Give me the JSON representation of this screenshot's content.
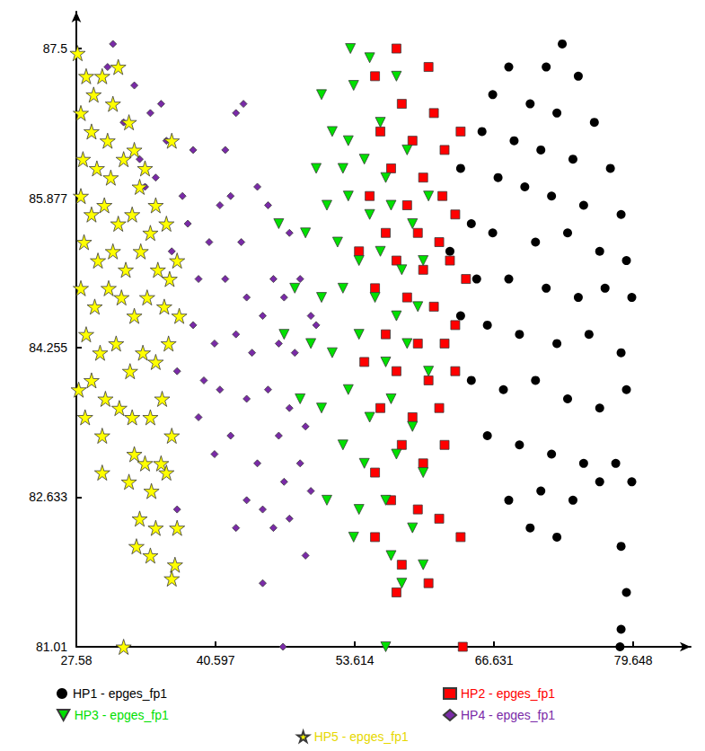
{
  "chart_data": {
    "type": "scatter",
    "xlim": [
      27.58,
      85
    ],
    "xticks": [
      27.58,
      40.597,
      53.614,
      66.631,
      79.648
    ],
    "ylim": [
      81.01,
      87.9
    ],
    "yticks": [
      81.01,
      82.633,
      84.255,
      85.877,
      87.5
    ],
    "grid": false,
    "legend": "bottom",
    "series": [
      {
        "name": "HP1 - epges_fp1",
        "color": "#000000",
        "marker": "circle",
        "x": [
          73.0,
          71.5,
          68.0,
          74.5,
          66.5,
          70.0,
          72.5,
          76.0,
          65.5,
          68.5,
          71.0,
          74.0,
          77.5,
          63.5,
          67.0,
          69.5,
          72.0,
          75.0,
          78.5,
          64.5,
          66.5,
          70.5,
          73.5,
          76.5,
          79.0,
          62.5,
          65.0,
          68.0,
          71.5,
          74.5,
          77.0,
          79.5,
          63.5,
          66.0,
          69.0,
          72.5,
          75.5,
          78.5,
          64.5,
          67.5,
          70.5,
          73.5,
          76.5,
          79.0,
          66.0,
          69.0,
          72.0,
          75.0,
          78.0,
          71.0,
          74.0,
          76.5,
          79.5,
          70.0,
          72.5,
          78.5,
          68.0,
          79.0,
          78.5,
          78.4
        ],
        "values": [
          87.55,
          87.3,
          87.3,
          87.2,
          87.0,
          86.9,
          86.8,
          86.7,
          86.6,
          86.5,
          86.4,
          86.3,
          86.2,
          86.2,
          86.1,
          86.0,
          85.9,
          85.8,
          85.7,
          85.6,
          85.5,
          85.4,
          85.5,
          85.3,
          85.2,
          85.3,
          85.0,
          85.0,
          84.9,
          84.8,
          84.9,
          84.8,
          84.6,
          84.5,
          84.4,
          84.3,
          84.4,
          84.2,
          83.9,
          83.8,
          83.9,
          83.7,
          83.6,
          83.8,
          83.3,
          83.2,
          83.1,
          83.0,
          83.0,
          82.7,
          82.6,
          82.8,
          82.8,
          82.3,
          82.2,
          82.1,
          82.6,
          81.6,
          81.2,
          81.01
        ]
      },
      {
        "name": "HP2 - epges_fp1",
        "color": "#ff0000",
        "marker": "square",
        "x": [
          57.5,
          60.5,
          55.5,
          58.0,
          61.0,
          63.5,
          56.0,
          59.0,
          62.0,
          57.0,
          60.0,
          61.8,
          55.0,
          58.5,
          63.0,
          56.5,
          59.5,
          61.5,
          54.0,
          57.5,
          60.0,
          62.5,
          64.0,
          55.5,
          58.5,
          61.0,
          63.0,
          56.5,
          59.5,
          62.0,
          54.5,
          57.5,
          60.5,
          63.0,
          56.0,
          59.0,
          61.5,
          58.0,
          60.0,
          62.0,
          55.5,
          57.0,
          59.5,
          61.5,
          63.5,
          55.5,
          58.0,
          60.5,
          57.5,
          63.7
        ],
        "values": [
          87.5,
          87.3,
          87.2,
          86.9,
          86.8,
          86.6,
          86.6,
          86.5,
          86.4,
          86.2,
          86.1,
          85.9,
          85.9,
          85.8,
          85.7,
          85.5,
          85.5,
          85.4,
          85.3,
          85.2,
          85.1,
          85.2,
          85.0,
          84.9,
          84.8,
          84.7,
          84.5,
          84.4,
          84.3,
          84.3,
          84.1,
          84.0,
          83.9,
          84.0,
          83.6,
          83.5,
          83.6,
          83.2,
          83.0,
          83.2,
          82.9,
          82.6,
          82.5,
          82.4,
          82.2,
          82.2,
          81.9,
          81.7,
          81.6,
          81.01
        ]
      },
      {
        "name": "HP3 - epges_fp1",
        "color": "#00e000",
        "marker": "triangle_down",
        "x": [
          53.2,
          50.5,
          53.5,
          55.0,
          51.5,
          53.0,
          56.0,
          57.5,
          50.0,
          52.5,
          54.5,
          56.5,
          58.5,
          51.0,
          53.0,
          55.0,
          57.0,
          59.0,
          60.5,
          46.5,
          49.0,
          52.0,
          54.0,
          56.0,
          58.0,
          60.0,
          48.0,
          50.5,
          52.5,
          55.5,
          57.5,
          59.5,
          47.0,
          49.5,
          51.5,
          54.0,
          56.5,
          58.5,
          60.5,
          48.5,
          50.5,
          53.0,
          55.0,
          57.0,
          59.0,
          52.5,
          54.5,
          57.5,
          60.0,
          51.0,
          54.0,
          56.5,
          59.0,
          53.5,
          57.0,
          60.0,
          58.0,
          56.5
        ],
        "values": [
          87.5,
          87.0,
          87.1,
          87.4,
          86.6,
          86.5,
          86.7,
          87.2,
          86.2,
          86.2,
          86.3,
          86.1,
          86.4,
          85.8,
          85.9,
          85.7,
          85.8,
          85.6,
          85.9,
          85.6,
          85.5,
          85.4,
          85.2,
          85.3,
          85.1,
          85.2,
          84.9,
          84.8,
          84.9,
          84.8,
          84.6,
          84.7,
          84.4,
          84.3,
          84.2,
          84.4,
          84.1,
          84.3,
          84.0,
          83.7,
          83.6,
          83.8,
          83.5,
          83.7,
          83.4,
          83.2,
          83.0,
          83.1,
          82.9,
          82.6,
          82.5,
          82.6,
          82.3,
          82.2,
          82.0,
          81.9,
          81.7,
          81.01
        ]
      },
      {
        "name": "HP4 - epges_fp1",
        "color": "#7a2aa8",
        "marker": "diamond",
        "x": [
          31.0,
          30.5,
          33.0,
          34.5,
          32.0,
          35.5,
          36.0,
          33.5,
          34.0,
          35.0,
          37.5,
          38.5,
          42.5,
          43.2,
          41.5,
          44.5,
          41.0,
          42.0,
          45.5,
          47.5,
          40.0,
          43.0,
          46.0,
          48.5,
          38.0,
          36.5,
          39.0,
          41.5,
          43.5,
          45.0,
          47.0,
          49.5,
          38.5,
          40.5,
          42.5,
          44.0,
          46.5,
          48.0,
          50.0,
          37.0,
          39.5,
          41.0,
          43.5,
          45.5,
          47.5,
          49.0,
          39.0,
          42.0,
          44.5,
          46.5,
          48.5,
          40.5,
          47.0,
          43.5,
          45.0,
          47.5,
          42.5,
          46.0,
          49.0,
          37.0,
          45.0,
          49.5,
          46.9
        ],
        "values": [
          87.55,
          87.3,
          87.1,
          86.8,
          86.7,
          86.9,
          86.5,
          86.3,
          86.0,
          86.1,
          85.9,
          86.4,
          86.8,
          86.9,
          86.4,
          86.0,
          85.8,
          85.9,
          85.8,
          85.5,
          85.4,
          85.4,
          85.0,
          85.0,
          85.6,
          85.3,
          85.0,
          85.0,
          84.8,
          84.6,
          84.8,
          84.6,
          84.5,
          84.3,
          84.4,
          84.2,
          84.3,
          84.2,
          84.5,
          84.0,
          83.9,
          83.8,
          83.7,
          83.8,
          83.6,
          83.4,
          83.5,
          83.3,
          83.0,
          83.3,
          83.0,
          83.1,
          82.8,
          82.6,
          82.5,
          82.4,
          82.3,
          82.3,
          82.0,
          82.5,
          81.7,
          82.7,
          81.01
        ]
      },
      {
        "name": "HP5 - epges_fp1",
        "color": "#ffff00",
        "marker": "star",
        "x": [
          27.7,
          28.5,
          29.2,
          30.0,
          31.5,
          29.0,
          28.0,
          30.5,
          31.0,
          32.5,
          33.0,
          28.2,
          29.5,
          30.8,
          32.0,
          33.5,
          34.0,
          35.0,
          36.5,
          28.0,
          29.0,
          30.2,
          31.5,
          32.8,
          34.5,
          36.0,
          37.0,
          28.3,
          29.6,
          31.0,
          32.2,
          33.6,
          35.2,
          36.3,
          28.0,
          29.3,
          30.6,
          31.8,
          33.0,
          34.2,
          35.8,
          37.2,
          28.5,
          29.8,
          31.3,
          32.6,
          33.8,
          35.0,
          36.2,
          27.8,
          29.0,
          30.3,
          31.6,
          32.8,
          34.5,
          35.6,
          28.4,
          30.0,
          33.0,
          34.0,
          35.5,
          36.5,
          30.0,
          32.5,
          34.6,
          36.0,
          33.5,
          35.0,
          33.2,
          34.5,
          37.0,
          36.8,
          36.5,
          32.0
        ],
        "values": [
          87.45,
          87.2,
          87.0,
          87.2,
          87.3,
          86.6,
          86.8,
          86.5,
          86.9,
          86.7,
          86.4,
          86.3,
          86.2,
          86.1,
          86.3,
          86.0,
          86.2,
          85.8,
          86.5,
          85.9,
          85.7,
          85.8,
          85.6,
          85.7,
          85.5,
          85.6,
          85.2,
          85.4,
          85.2,
          85.3,
          85.1,
          85.3,
          85.1,
          85.0,
          84.9,
          84.7,
          84.9,
          84.8,
          84.6,
          84.8,
          84.7,
          84.6,
          84.4,
          84.2,
          84.3,
          84.0,
          84.2,
          84.1,
          84.3,
          83.8,
          83.9,
          83.7,
          83.6,
          83.5,
          83.5,
          83.7,
          83.5,
          83.3,
          83.1,
          83.0,
          83.0,
          83.3,
          82.9,
          82.8,
          82.7,
          82.9,
          82.4,
          82.3,
          82.1,
          82.0,
          82.3,
          81.9,
          81.75,
          81.01
        ]
      }
    ]
  }
}
